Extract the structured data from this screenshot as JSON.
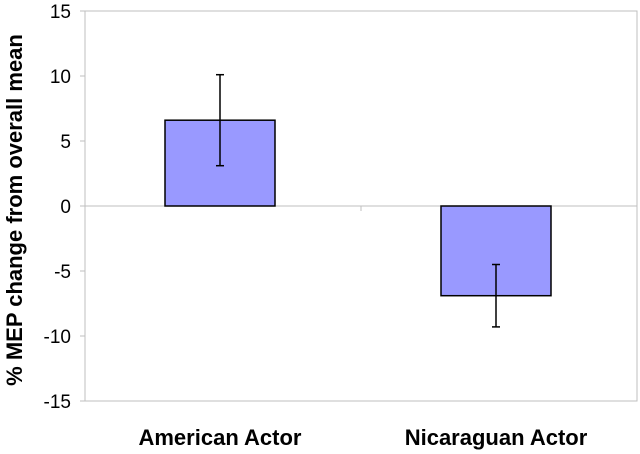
{
  "chart_data": {
    "type": "bar",
    "categories": [
      "American Actor",
      "Nicaraguan Actor"
    ],
    "values": [
      6.6,
      -6.9
    ],
    "error_low": [
      3.1,
      -9.3
    ],
    "error_high": [
      10.1,
      -4.5
    ],
    "ylabel": "% MEP change from overall mean",
    "xlabel": "",
    "ylim": [
      -15,
      15
    ],
    "yticks": [
      15,
      10,
      5,
      0,
      -5,
      -10,
      -15
    ],
    "bar_color": "#9999ff",
    "grid": false
  }
}
